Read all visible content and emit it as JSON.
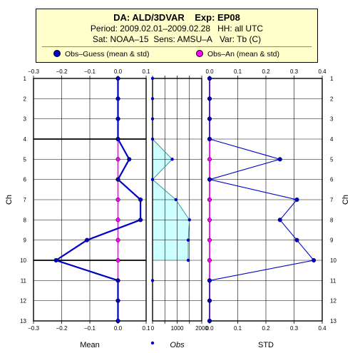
{
  "header": {
    "title_da": "DA: ALD/3DVAR",
    "title_exp": "Exp: EP08",
    "period": "Period: 2009.02.01–2009.02.28",
    "hh": "HH: all UTC",
    "sat": "Sat: NOAA–15",
    "sens": "Sens: AMSU–A",
    "var": "Var: Tb (C)",
    "legend_og": "Obs–Guess (mean & std)",
    "legend_oa": "Obs–An (mean & std)"
  },
  "colors": {
    "og": "#0000cc",
    "oa": "#ff00ff",
    "obs_fill": "#ccffff",
    "header_bg": "#ffffcc"
  },
  "chart_data": [
    {
      "type": "line",
      "panel": "mean",
      "xlabel": "Mean",
      "ylabel": "Ch",
      "xlim": [
        -0.3,
        0.1
      ],
      "ylim": [
        1,
        13
      ],
      "xticks": [
        -0.3,
        -0.2,
        -0.1,
        0.0,
        0.1
      ],
      "xtick_labels": [
        "−0.3",
        "−0.2",
        "−0.1",
        "0.0",
        "0.1"
      ],
      "yticks": [
        1,
        2,
        3,
        4,
        5,
        6,
        7,
        8,
        9,
        10,
        11,
        12,
        13
      ],
      "hlines": [
        4,
        10
      ],
      "series": [
        {
          "name": "Obs–Guess (mean & std)",
          "x": [
            0.0,
            0.0,
            0.0,
            0.0,
            0.04,
            0.0,
            0.08,
            0.08,
            -0.11,
            -0.22,
            0.0,
            0.0,
            0.0
          ],
          "y": [
            1,
            2,
            3,
            4,
            5,
            6,
            7,
            8,
            9,
            10,
            11,
            12,
            13
          ]
        },
        {
          "name": "Obs–An (mean & std)",
          "x": [
            0,
            0,
            0,
            0,
            0,
            0,
            0,
            0,
            0,
            0,
            0,
            0,
            0
          ],
          "y": [
            1,
            2,
            3,
            4,
            5,
            6,
            7,
            8,
            9,
            10,
            11,
            12,
            13
          ]
        }
      ]
    },
    {
      "type": "area",
      "panel": "obs",
      "xlabel": "Obs",
      "xlim": [
        0,
        2000
      ],
      "ylim": [
        1,
        13
      ],
      "xticks": [
        0,
        500,
        1000,
        1500,
        2000
      ],
      "xtick_labels": [
        "0",
        "1000",
        "2000"
      ],
      "xtick_label_values": [
        0,
        1000,
        2000
      ],
      "series": [
        {
          "name": "Obs",
          "x": [
            0,
            800,
            0,
            950,
            1500,
            1450,
            1450
          ],
          "y": [
            4,
            5,
            6,
            7,
            8,
            9,
            10
          ]
        },
        {
          "name": "Obs",
          "x": [
            0,
            0,
            0,
            0,
            800,
            0,
            950,
            1500,
            1450,
            1450,
            0
          ],
          "y": [
            1,
            2,
            3,
            4,
            5,
            6,
            7,
            8,
            9,
            10,
            11
          ]
        }
      ]
    },
    {
      "type": "line",
      "panel": "std",
      "xlabel": "STD",
      "ylabel": "Ch",
      "xlim": [
        0.0,
        0.4
      ],
      "ylim": [
        1,
        13
      ],
      "xticks": [
        0.0,
        0.1,
        0.2,
        0.3,
        0.4
      ],
      "xtick_labels": [
        "0.0",
        "0.1",
        "0.2",
        "0.3",
        "0.4"
      ],
      "series": [
        {
          "name": "Obs–Guess (mean & std)",
          "x": [
            0.0,
            0.0,
            0.0,
            0.0,
            0.25,
            0.0,
            0.31,
            0.25,
            0.31,
            0.37,
            0.0,
            0.0,
            0.0
          ],
          "y": [
            1,
            2,
            3,
            4,
            5,
            6,
            7,
            8,
            9,
            10,
            11,
            12,
            13
          ]
        },
        {
          "name": "Obs–An (mean & std)",
          "x": [
            0,
            0,
            0,
            0,
            0,
            0,
            0,
            0,
            0,
            0,
            0,
            0,
            0
          ],
          "y": [
            1,
            2,
            3,
            4,
            5,
            6,
            7,
            8,
            9,
            10,
            11,
            12,
            13
          ]
        }
      ]
    }
  ]
}
